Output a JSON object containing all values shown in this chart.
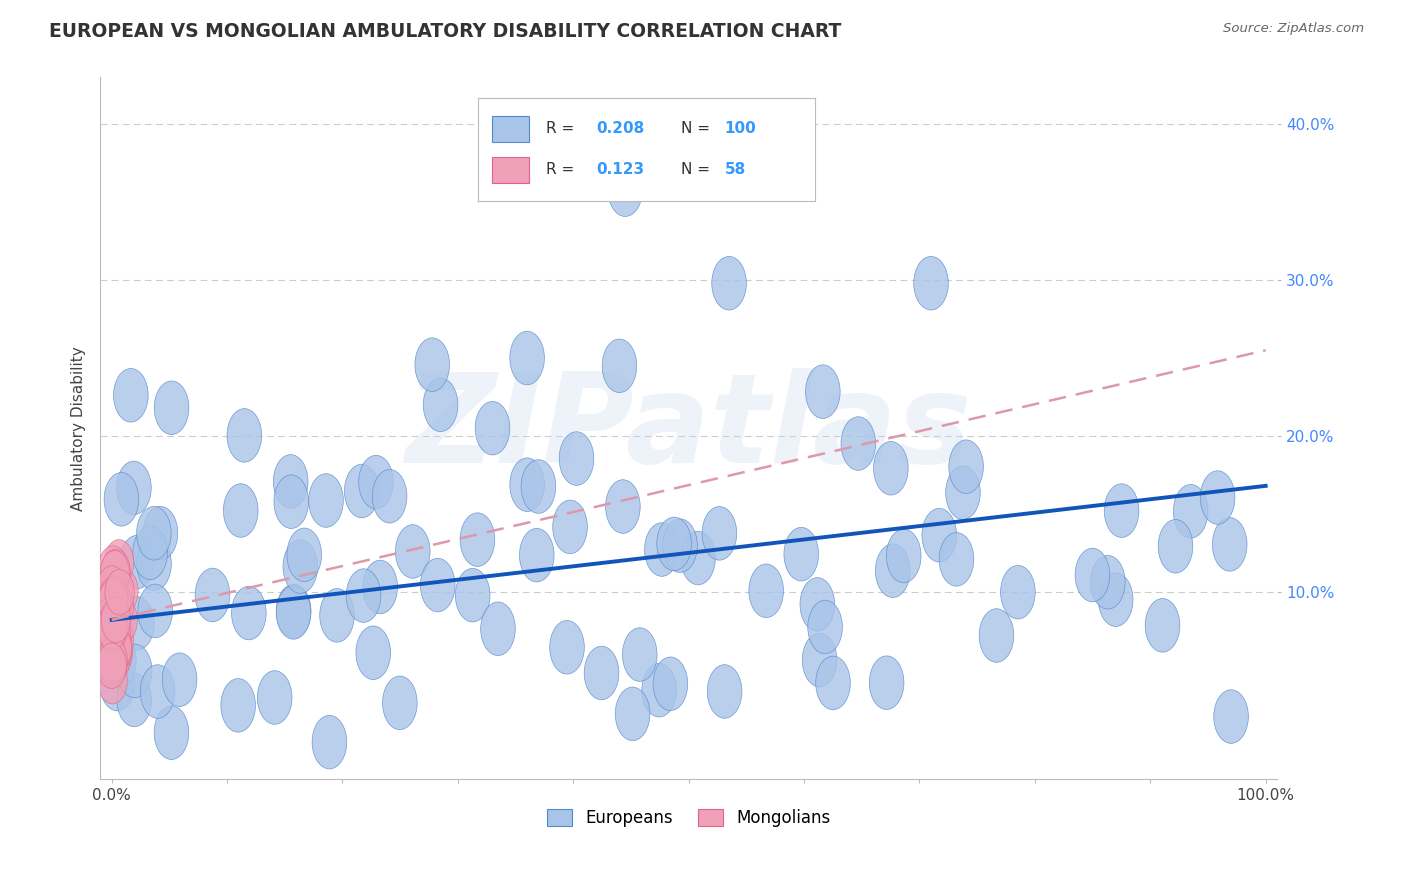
{
  "title": "EUROPEAN VS MONGOLIAN AMBULATORY DISABILITY CORRELATION CHART",
  "source": "Source: ZipAtlas.com",
  "ylabel": "Ambulatory Disability",
  "xlim": [
    -0.01,
    1.01
  ],
  "ylim": [
    -0.02,
    0.43
  ],
  "xticks": [
    0.0,
    0.1,
    0.2,
    0.3,
    0.4,
    0.5,
    0.6,
    0.7,
    0.8,
    0.9,
    1.0
  ],
  "xtick_labels": [
    "0.0%",
    "",
    "",
    "",
    "",
    "",
    "",
    "",
    "",
    "",
    "100.0%"
  ],
  "yticks": [
    0.1,
    0.2,
    0.3,
    0.4
  ],
  "ytick_labels": [
    "10.0%",
    "20.0%",
    "30.0%",
    "40.0%"
  ],
  "european_color": "#a8c4e8",
  "mongolian_color": "#f0a0b8",
  "european_edge": "#5588cc",
  "mongolian_edge": "#dd6688",
  "trend_european_color": "#1155bb",
  "trend_mongolian_color": "#dd99aa",
  "R_european": 0.208,
  "N_european": 100,
  "R_mongolian": 0.123,
  "N_mongolian": 58,
  "watermark": "ZIPatlas",
  "background_color": "#ffffff",
  "grid_color": "#cccccc",
  "title_color": "#333333",
  "legend_text_color": "#3399ff",
  "eu_trend_start_y": 0.082,
  "eu_trend_end_y": 0.168,
  "mo_trend_start_y": 0.082,
  "mo_trend_end_y": 0.255
}
